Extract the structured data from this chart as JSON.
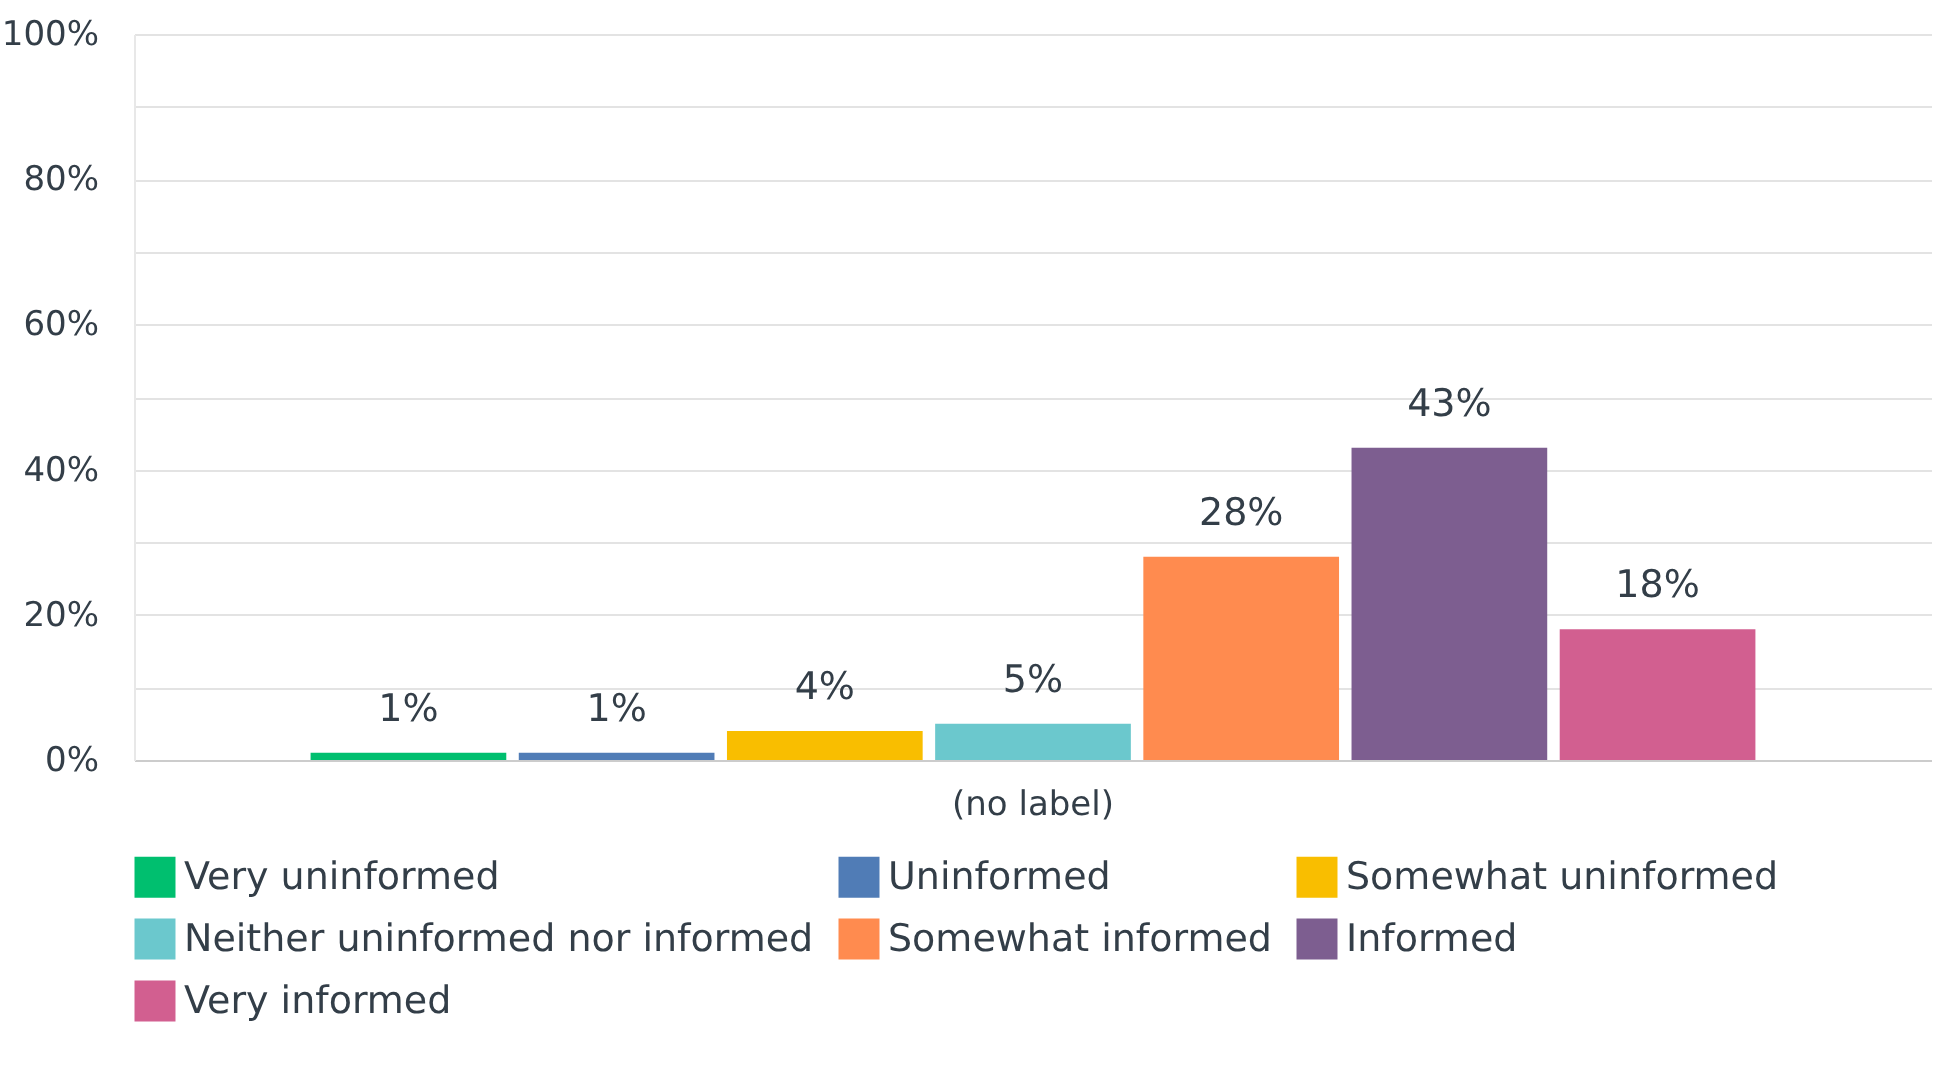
{
  "chart_data": {
    "type": "bar",
    "categories": [
      "(no label)"
    ],
    "series": [
      {
        "name": "Very uninformed",
        "color": "#00bf6f",
        "values": [
          1
        ],
        "value_labels": [
          "1%"
        ]
      },
      {
        "name": "Uninformed",
        "color": "#507cb6",
        "values": [
          1
        ],
        "value_labels": [
          "1%"
        ]
      },
      {
        "name": "Somewhat uninformed",
        "color": "#f9be00",
        "values": [
          4
        ],
        "value_labels": [
          "4%"
        ]
      },
      {
        "name": "Neither uninformed nor informed",
        "color": "#6bc8cd",
        "values": [
          5
        ],
        "value_labels": [
          "5%"
        ]
      },
      {
        "name": "Somewhat informed",
        "color": "#ff8b4f",
        "values": [
          28
        ],
        "value_labels": [
          "28%"
        ]
      },
      {
        "name": "Informed",
        "color": "#7d5e90",
        "values": [
          43
        ],
        "value_labels": [
          "43%"
        ]
      },
      {
        "name": "Very informed",
        "color": "#d25f90",
        "values": [
          18
        ],
        "value_labels": [
          "18%"
        ]
      }
    ],
    "ylim": [
      0,
      100
    ],
    "yticks": [
      {
        "value": 0,
        "label": "0%"
      },
      {
        "value": 10,
        "label": null
      },
      {
        "value": 20,
        "label": "20%"
      },
      {
        "value": 30,
        "label": null
      },
      {
        "value": 40,
        "label": "40%"
      },
      {
        "value": 50,
        "label": null
      },
      {
        "value": 60,
        "label": "60%"
      },
      {
        "value": 70,
        "label": null
      },
      {
        "value": 80,
        "label": "80%"
      },
      {
        "value": 90,
        "label": null
      },
      {
        "value": 100,
        "label": "100%"
      }
    ],
    "grid": "y",
    "legend": "bottom"
  }
}
